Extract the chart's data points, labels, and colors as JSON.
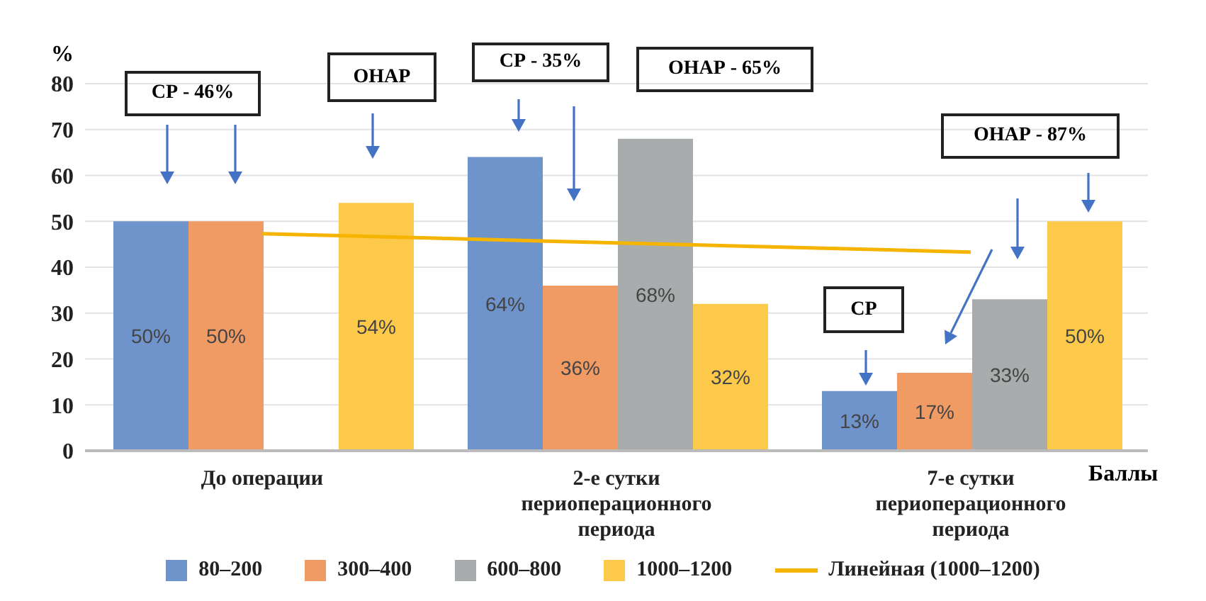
{
  "chart_data": {
    "type": "bar",
    "ylabel": "%",
    "xlabel": "Баллы",
    "categories": [
      "До операции",
      "2-е сутки периоперационного периода",
      "7-е сутки периоперационного периода"
    ],
    "series": [
      {
        "name": "80–200",
        "color": "#6f94cc",
        "values": [
          50,
          64,
          13
        ],
        "value_labels": [
          "50%",
          "64%",
          "13%"
        ]
      },
      {
        "name": "300–400",
        "color": "#f09a64",
        "values": [
          50,
          36,
          17
        ],
        "value_labels": [
          "50%",
          "36%",
          "17%"
        ]
      },
      {
        "name": "600–800",
        "color": "#a9acad",
        "values": [
          null,
          68,
          33
        ],
        "value_labels": [
          null,
          "68%",
          "33%"
        ]
      },
      {
        "name": "1000–1200",
        "color": "#fcc94a",
        "values": [
          54,
          32,
          50
        ],
        "value_labels": [
          "54%",
          "32%",
          "50%"
        ]
      },
      {
        "name": "Линейная (1000–1200)",
        "type": "line",
        "color": "#f5b400",
        "values": [
          47.3,
          45.3,
          43.3
        ]
      }
    ],
    "ylim": [
      0,
      80
    ],
    "yticks": [
      0,
      10,
      20,
      30,
      40,
      50,
      60,
      70,
      80
    ],
    "grid": "y",
    "legend": "bottom",
    "marker": "none",
    "annotations": [
      "СР - 46%",
      "ОНАР",
      "СР - 35%",
      "ОНАР - 65%",
      "СР",
      "ОНАР - 87%"
    ]
  }
}
